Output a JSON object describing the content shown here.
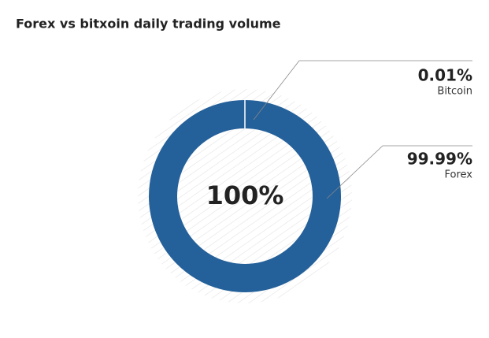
{
  "chart_data": {
    "type": "donut",
    "title": "Forex vs bitxoin daily trading volume",
    "categories": [
      "Bitcoin",
      "Forex"
    ],
    "values": [
      0.01,
      99.99
    ],
    "value_labels": [
      "0.01%",
      "99.99%"
    ],
    "colors": [
      "#24609a",
      "#24609a"
    ],
    "center_label": "100%"
  }
}
